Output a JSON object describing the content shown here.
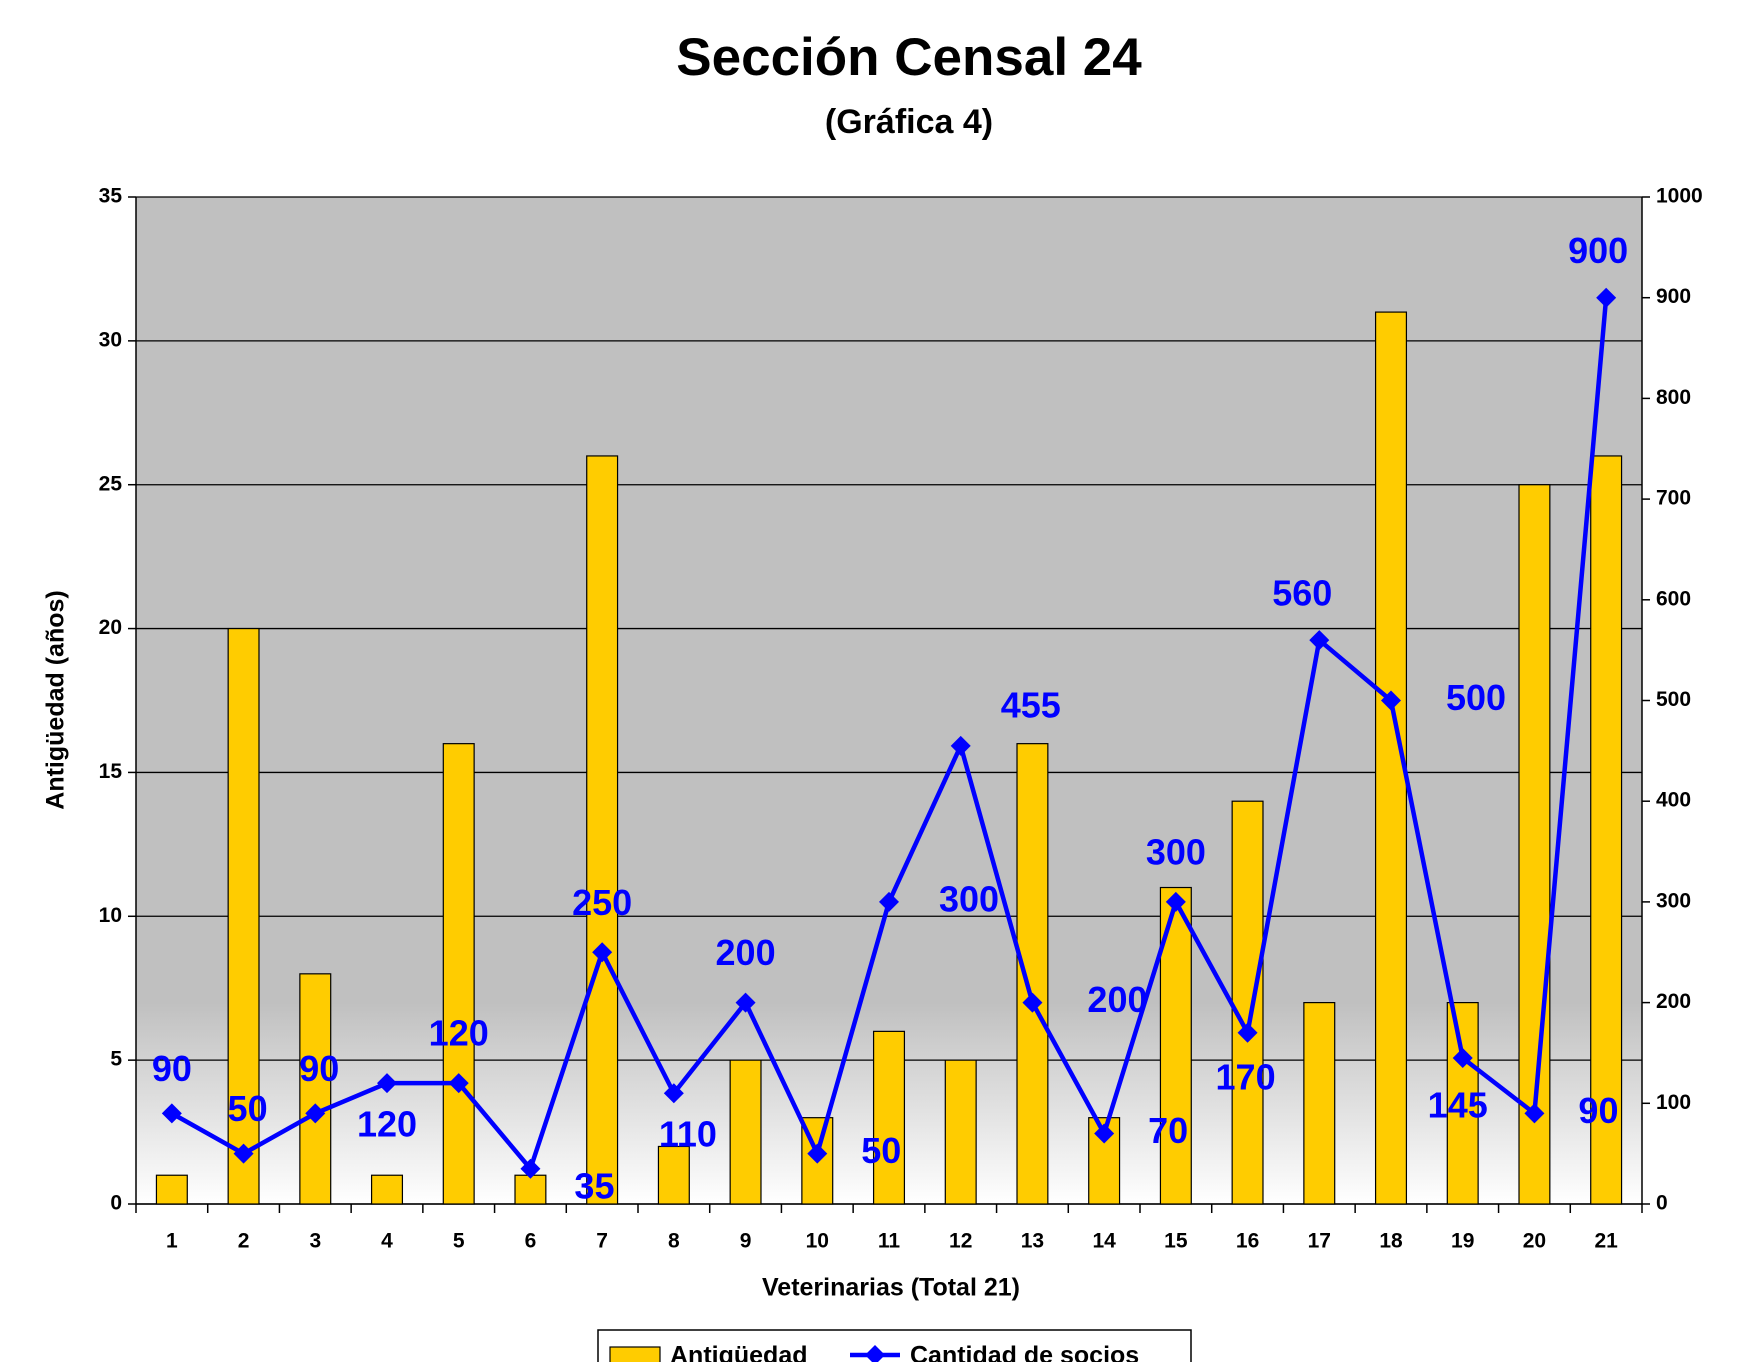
{
  "chart_data": {
    "type": "bar_line",
    "title": "Sección Censal 24",
    "subtitle": "(Gráfica 4)",
    "x_label": "Veterinarias (Total 21)",
    "y_label": "Antigüedad (años)",
    "categories": [
      "1",
      "2",
      "3",
      "4",
      "5",
      "6",
      "7",
      "8",
      "9",
      "10",
      "11",
      "12",
      "13",
      "14",
      "15",
      "16",
      "17",
      "18",
      "19",
      "20",
      "21"
    ],
    "series": [
      {
        "name": "Antigüedad",
        "color": "#ffcc00",
        "values": [
          1,
          20,
          8,
          1,
          16,
          1,
          26,
          2,
          5,
          3,
          6,
          5,
          16,
          3,
          11,
          14,
          7,
          31,
          7,
          25,
          26
        ]
      },
      {
        "name": "Cantidad de socios",
        "color": "#0000ff",
        "axis": "y2",
        "values": [
          90,
          50,
          90,
          120,
          120,
          35,
          250,
          110,
          200,
          50,
          300,
          455,
          200,
          70,
          300,
          170,
          560,
          500,
          145,
          90,
          900
        ]
      }
    ],
    "ylim": [
      0,
      35
    ],
    "yticks": [
      0,
      5,
      10,
      15,
      20,
      25,
      30,
      35
    ],
    "y2lim": [
      0,
      1000
    ],
    "y2ticks": [
      0,
      100,
      200,
      300,
      400,
      500,
      600,
      700,
      800,
      900,
      1000
    ],
    "grid": true,
    "legend": "bottom"
  }
}
